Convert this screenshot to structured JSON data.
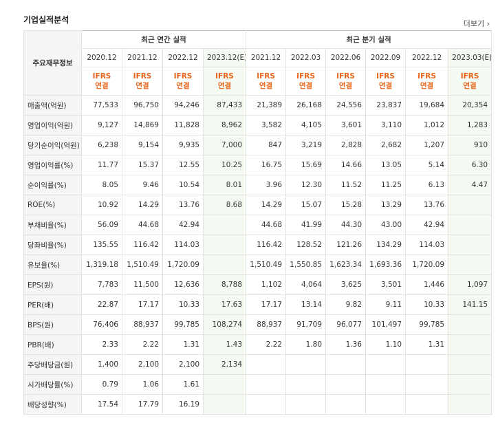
{
  "header": {
    "title": "기업실적분석",
    "more": "더보기"
  },
  "table": {
    "corner": "주요재무정보",
    "groups": [
      "최근 연간 실적",
      "최근 분기 실적"
    ],
    "periods": [
      "2020.12",
      "2021.12",
      "2022.12",
      "2023.12(E)",
      "2021.12",
      "2022.03",
      "2022.06",
      "2022.09",
      "2022.12",
      "2023.03(E)"
    ],
    "basis": [
      "IFRS",
      "연결"
    ],
    "rows": [
      {
        "label": "매출액(억원)",
        "values": [
          "77,533",
          "96,750",
          "94,246",
          "87,433",
          "21,389",
          "26,168",
          "24,556",
          "23,837",
          "19,684",
          "20,354"
        ]
      },
      {
        "label": "영업이익(억원)",
        "values": [
          "9,127",
          "14,869",
          "11,828",
          "8,962",
          "3,582",
          "4,105",
          "3,601",
          "3,110",
          "1,012",
          "1,283"
        ]
      },
      {
        "label": "당기순이익(억원)",
        "values": [
          "6,238",
          "9,154",
          "9,935",
          "7,000",
          "847",
          "3,219",
          "2,828",
          "2,682",
          "1,207",
          "910"
        ]
      },
      {
        "label": "영업이익률(%)",
        "values": [
          "11.77",
          "15.37",
          "12.55",
          "10.25",
          "16.75",
          "15.69",
          "14.66",
          "13.05",
          "5.14",
          "6.30"
        ]
      },
      {
        "label": "순이익률(%)",
        "values": [
          "8.05",
          "9.46",
          "10.54",
          "8.01",
          "3.96",
          "12.30",
          "11.52",
          "11.25",
          "6.13",
          "4.47"
        ]
      },
      {
        "label": "ROE(%)",
        "values": [
          "10.92",
          "14.29",
          "13.76",
          "8.68",
          "14.29",
          "15.07",
          "15.28",
          "13.29",
          "13.76",
          null
        ]
      },
      {
        "label": "부채비율(%)",
        "values": [
          "56.09",
          "44.68",
          "42.94",
          null,
          "44.68",
          "41.99",
          "44.30",
          "43.00",
          "42.94",
          null
        ]
      },
      {
        "label": "당좌비율(%)",
        "values": [
          "135.55",
          "116.42",
          "114.03",
          null,
          "116.42",
          "128.52",
          "121.26",
          "134.29",
          "114.03",
          null
        ]
      },
      {
        "label": "유보율(%)",
        "values": [
          "1,319.18",
          "1,510.49",
          "1,720.09",
          null,
          "1,510.49",
          "1,550.85",
          "1,623.34",
          "1,693.36",
          "1,720.09",
          null
        ]
      },
      {
        "label": "EPS(원)",
        "values": [
          "7,783",
          "11,500",
          "12,636",
          "8,788",
          "1,102",
          "4,064",
          "3,625",
          "3,501",
          "1,446",
          "1,097"
        ]
      },
      {
        "label": "PER(배)",
        "values": [
          "22.87",
          "17.17",
          "10.33",
          "17.63",
          "17.17",
          "13.14",
          "9.82",
          "9.11",
          "10.33",
          "141.15"
        ]
      },
      {
        "label": "BPS(원)",
        "values": [
          "76,406",
          "88,937",
          "99,785",
          "108,274",
          "88,937",
          "91,709",
          "96,077",
          "101,497",
          "99,785",
          null
        ]
      },
      {
        "label": "PBR(배)",
        "values": [
          "2.33",
          "2.22",
          "1.31",
          "1.43",
          "2.22",
          "1.80",
          "1.36",
          "1.10",
          "1.31",
          null
        ]
      },
      {
        "label": "주당배당금(원)",
        "values": [
          "1,400",
          "2,100",
          "2,100",
          "2,134",
          null,
          null,
          null,
          null,
          null,
          null
        ]
      },
      {
        "label": "시가배당률(%)",
        "values": [
          "0.79",
          "1.06",
          "1.61",
          null,
          null,
          null,
          null,
          null,
          null,
          null
        ]
      },
      {
        "label": "배당성향(%)",
        "values": [
          "17.54",
          "17.79",
          "16.19",
          null,
          null,
          null,
          null,
          null,
          null,
          null
        ]
      }
    ]
  }
}
